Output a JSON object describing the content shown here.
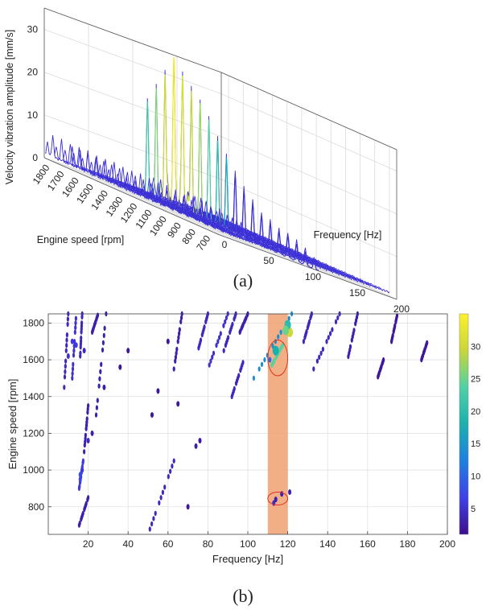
{
  "panels": [
    {
      "label": "(a)",
      "chart_data": {
        "type": "waterfall",
        "xlabel": "Frequency [Hz]",
        "ylabel": "Engine speed [rpm]",
        "zlabel": "Velocity vibration amplitude [mm/s]",
        "xlim": [
          0,
          200
        ],
        "ylim": [
          650,
          1850
        ],
        "zlim": [
          0,
          35
        ],
        "x_ticks": [
          0,
          50,
          100,
          150,
          200
        ],
        "y_ticks": [
          700,
          800,
          900,
          1000,
          1100,
          1200,
          1300,
          1400,
          1500,
          1600,
          1700,
          1800
        ],
        "z_ticks": [
          0,
          10,
          20,
          30
        ],
        "grid": true,
        "trace_color": "#3b2fd6",
        "peak_color": "#4fd1a5",
        "series": [
          {
            "rpm": 700,
            "peaks": [
              [
                2,
                3
              ],
              [
                8,
                5
              ],
              [
                16,
                3
              ],
              [
                52,
                2
              ],
              [
                115,
                2
              ]
            ]
          },
          {
            "rpm": 760,
            "peaks": [
              [
                2,
                3
              ],
              [
                8,
                5
              ],
              [
                16,
                3
              ],
              [
                57,
                2
              ],
              [
                115,
                3
              ]
            ]
          },
          {
            "rpm": 820,
            "peaks": [
              [
                2,
                3
              ],
              [
                8,
                5
              ],
              [
                16,
                3
              ],
              [
                62,
                2
              ],
              [
                115,
                4
              ]
            ]
          },
          {
            "rpm": 880,
            "peaks": [
              [
                2,
                3
              ],
              [
                8,
                5
              ],
              [
                16,
                3
              ],
              [
                67,
                2
              ],
              [
                115,
                5
              ]
            ]
          },
          {
            "rpm": 940,
            "peaks": [
              [
                2,
                3
              ],
              [
                8,
                5
              ],
              [
                16,
                4
              ],
              [
                72,
                3
              ],
              [
                115,
                5
              ]
            ]
          },
          {
            "rpm": 1000,
            "peaks": [
              [
                2,
                3
              ],
              [
                8,
                5
              ],
              [
                17,
                4
              ],
              [
                77,
                3
              ],
              [
                115,
                6
              ]
            ]
          },
          {
            "rpm": 1060,
            "peaks": [
              [
                2,
                3
              ],
              [
                8,
                5
              ],
              [
                17,
                4
              ],
              [
                82,
                3
              ],
              [
                115,
                7
              ]
            ]
          },
          {
            "rpm": 1120,
            "peaks": [
              [
                2,
                3
              ],
              [
                8,
                5
              ],
              [
                18,
                4
              ],
              [
                86,
                3
              ],
              [
                115,
                9
              ]
            ]
          },
          {
            "rpm": 1180,
            "peaks": [
              [
                2,
                3
              ],
              [
                8,
                5
              ],
              [
                19,
                4
              ],
              [
                90,
                3
              ],
              [
                115,
                11
              ]
            ]
          },
          {
            "rpm": 1240,
            "peaks": [
              [
                2,
                3
              ],
              [
                8,
                5
              ],
              [
                20,
                4
              ],
              [
                94,
                3
              ],
              [
                115,
                14
              ]
            ]
          },
          {
            "rpm": 1300,
            "peaks": [
              [
                2,
                3
              ],
              [
                8,
                5
              ],
              [
                21,
                4
              ],
              [
                98,
                3
              ],
              [
                115,
                17
              ]
            ]
          },
          {
            "rpm": 1360,
            "peaks": [
              [
                2,
                3
              ],
              [
                8,
                5
              ],
              [
                22,
                4
              ],
              [
                102,
                4
              ],
              [
                115,
                20
              ]
            ]
          },
          {
            "rpm": 1420,
            "peaks": [
              [
                2,
                3
              ],
              [
                8,
                5
              ],
              [
                23,
                4
              ],
              [
                106,
                4
              ],
              [
                115,
                24
              ]
            ]
          },
          {
            "rpm": 1480,
            "peaks": [
              [
                2,
                3
              ],
              [
                8,
                5
              ],
              [
                24,
                4
              ],
              [
                109,
                4
              ],
              [
                115,
                27
              ]
            ]
          },
          {
            "rpm": 1540,
            "peaks": [
              [
                2,
                3
              ],
              [
                8,
                5
              ],
              [
                25,
                4
              ],
              [
                111,
                4
              ],
              [
                115,
                29
              ]
            ]
          },
          {
            "rpm": 1600,
            "peaks": [
              [
                2,
                3
              ],
              [
                8,
                5
              ],
              [
                26,
                4
              ],
              [
                113,
                4
              ],
              [
                115,
                31
              ]
            ]
          },
          {
            "rpm": 1660,
            "peaks": [
              [
                2,
                3
              ],
              [
                8,
                5
              ],
              [
                27,
                4
              ],
              [
                116,
                4
              ],
              [
                115,
                34
              ]
            ]
          },
          {
            "rpm": 1720,
            "peaks": [
              [
                2,
                3
              ],
              [
                8,
                5
              ],
              [
                28,
                4
              ],
              [
                118,
                4
              ],
              [
                115,
                30
              ]
            ]
          },
          {
            "rpm": 1780,
            "peaks": [
              [
                2,
                3
              ],
              [
                8,
                5
              ],
              [
                29,
                4
              ],
              [
                120,
                4
              ],
              [
                115,
                26
              ]
            ]
          },
          {
            "rpm": 1840,
            "peaks": [
              [
                2,
                3
              ],
              [
                8,
                5
              ],
              [
                30,
                4
              ],
              [
                122,
                4
              ],
              [
                115,
                22
              ]
            ]
          }
        ]
      }
    },
    {
      "label": "(b)",
      "chart_data": {
        "type": "heatmap",
        "xlabel": "Frequency [Hz]",
        "ylabel": "Engine speed [rpm]",
        "xlim": [
          0,
          200
        ],
        "ylim": [
          650,
          1850
        ],
        "x_ticks": [
          20,
          40,
          60,
          80,
          100,
          120,
          140,
          160,
          180,
          200
        ],
        "y_ticks": [
          800,
          1000,
          1200,
          1400,
          1600,
          1800
        ],
        "grid": true,
        "colorbar": {
          "ticks": [
            5,
            10,
            15,
            20,
            25,
            30
          ],
          "range": [
            1,
            35
          ],
          "colors": [
            "#3d0f8c",
            "#4040e8",
            "#1f7fe0",
            "#1bb0b0",
            "#4fd1a5",
            "#c8d63a",
            "#fcf12a"
          ]
        },
        "highlight_band": {
          "x_range": [
            110,
            120
          ],
          "color": "#f0a070",
          "opacity": 0.85
        },
        "circles": [
          {
            "cx": 115,
            "cy": 1610,
            "rx": 5,
            "ry": 195,
            "color": "#e03020"
          },
          {
            "cx": 115,
            "cy": 845,
            "rx": 5,
            "ry": 70,
            "color": "#e03020"
          }
        ],
        "order_lines": [
          {
            "x1": 15.5,
            "y1": 700,
            "x2": 20,
            "y2": 850,
            "value": 3
          },
          {
            "x1": 15.5,
            "y1": 900,
            "x2": 17.5,
            "y2": 1050,
            "value": 6
          },
          {
            "x1": 18,
            "y1": 1100,
            "x2": 20,
            "y2": 1350,
            "value": 3
          },
          {
            "x1": 8,
            "y1": 1450,
            "x2": 10,
            "y2": 1850,
            "value": 4
          },
          {
            "x1": 12,
            "y1": 1500,
            "x2": 14,
            "y2": 1850,
            "value": 5
          },
          {
            "x1": 16,
            "y1": 1620,
            "x2": 17,
            "y2": 1850,
            "value": 4
          },
          {
            "x1": 22,
            "y1": 1750,
            "x2": 25,
            "y2": 1850,
            "value": 3
          },
          {
            "x1": 24,
            "y1": 1300,
            "x2": 29,
            "y2": 1850,
            "value": 3
          },
          {
            "x1": 50,
            "y1": 650,
            "x2": 63,
            "y2": 1050,
            "value": 4
          },
          {
            "x1": 63,
            "y1": 1550,
            "x2": 67,
            "y2": 1850,
            "value": 3
          },
          {
            "x1": 75,
            "y1": 1650,
            "x2": 80,
            "y2": 1850,
            "value": 4
          },
          {
            "x1": 80,
            "y1": 1550,
            "x2": 90,
            "y2": 1850,
            "value": 5
          },
          {
            "x1": 88,
            "y1": 1650,
            "x2": 94,
            "y2": 1850,
            "value": 4
          },
          {
            "x1": 92,
            "y1": 1400,
            "x2": 98,
            "y2": 1600,
            "value": 4
          },
          {
            "x1": 96,
            "y1": 1750,
            "x2": 100,
            "y2": 1850,
            "value": 3
          },
          {
            "x1": 103,
            "y1": 1500,
            "x2": 122,
            "y2": 1850,
            "value": 14
          },
          {
            "x1": 112,
            "y1": 1570,
            "x2": 118,
            "y2": 1690,
            "value": 24
          },
          {
            "x1": 128,
            "y1": 1700,
            "x2": 132,
            "y2": 1850,
            "value": 4
          },
          {
            "x1": 133,
            "y1": 1550,
            "x2": 146,
            "y2": 1850,
            "value": 4
          },
          {
            "x1": 150,
            "y1": 1600,
            "x2": 155,
            "y2": 1850,
            "value": 3
          },
          {
            "x1": 165,
            "y1": 1500,
            "x2": 168,
            "y2": 1600,
            "value": 2
          },
          {
            "x1": 172,
            "y1": 1700,
            "x2": 175,
            "y2": 1850,
            "value": 2
          },
          {
            "x1": 187,
            "y1": 1600,
            "x2": 190,
            "y2": 1700,
            "value": 2
          }
        ],
        "spots": [
          [
            16,
            975,
            8
          ],
          [
            16,
            950,
            7
          ],
          [
            17,
            1000,
            6
          ],
          [
            20,
            1160,
            4
          ],
          [
            22,
            1200,
            3
          ],
          [
            28,
            1450,
            3
          ],
          [
            36,
            1560,
            2
          ],
          [
            40,
            1650,
            2
          ],
          [
            52,
            1300,
            2
          ],
          [
            55,
            1430,
            2
          ],
          [
            65,
            1360,
            2
          ],
          [
            74,
            1130,
            3
          ],
          [
            76,
            1160,
            2
          ],
          [
            70,
            800,
            2
          ],
          [
            60,
            1700,
            2
          ],
          [
            113,
            820,
            4
          ],
          [
            114,
            840,
            3
          ],
          [
            117,
            870,
            3
          ],
          [
            121,
            880,
            3
          ],
          [
            121,
            1750,
            30
          ],
          [
            120,
            1790,
            20
          ],
          [
            119,
            1760,
            25
          ],
          [
            114,
            1650,
            18
          ],
          [
            111,
            1600,
            10
          ],
          [
            12,
            1700,
            6
          ],
          [
            14,
            1680,
            6
          ],
          [
            10,
            1620,
            5
          ],
          [
            18,
            1650,
            4
          ]
        ]
      }
    }
  ]
}
